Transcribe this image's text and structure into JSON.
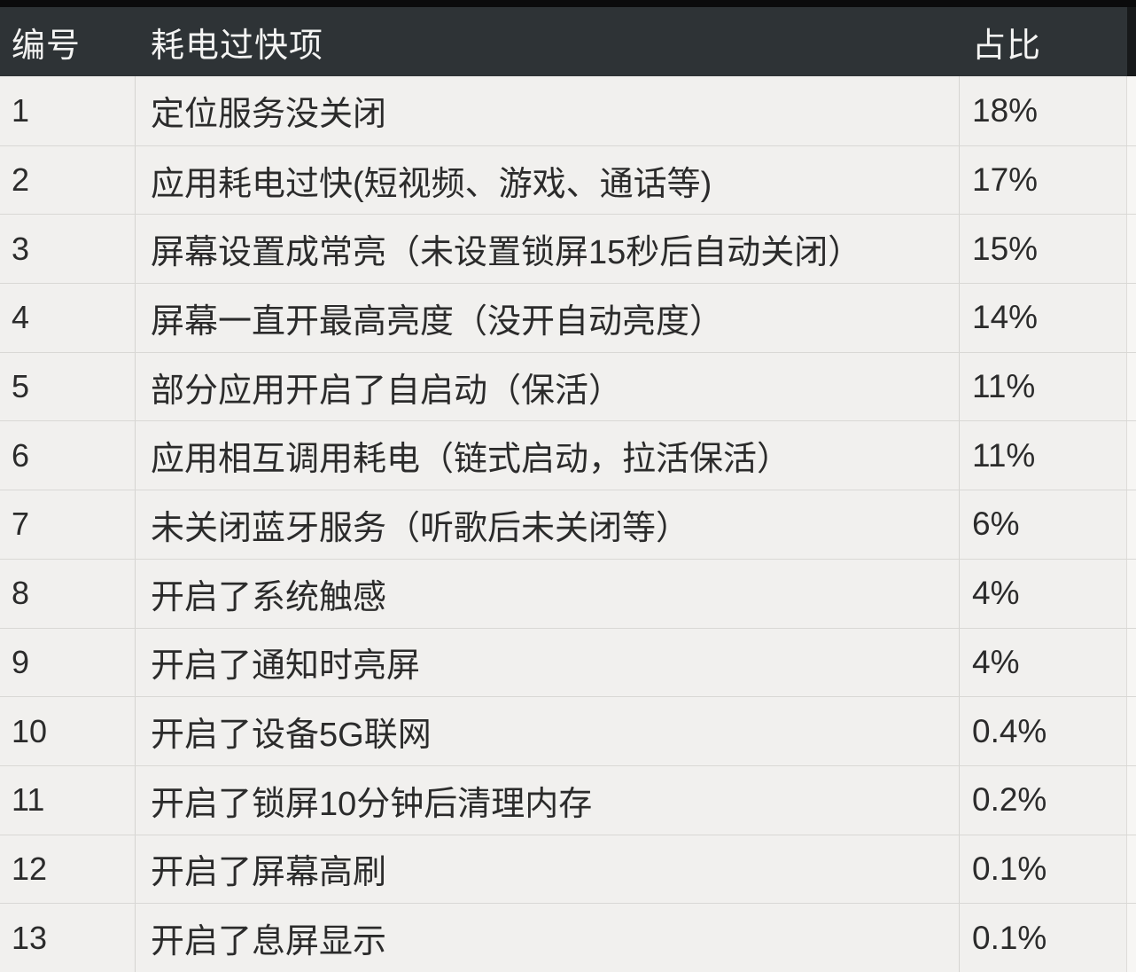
{
  "table": {
    "columns": [
      {
        "key": "id",
        "label": "编号"
      },
      {
        "key": "item",
        "label": "耗电过快项"
      },
      {
        "key": "pct",
        "label": "占比"
      }
    ],
    "rows": [
      {
        "id": "1",
        "item": "定位服务没关闭",
        "pct": "18%"
      },
      {
        "id": "2",
        "item": "应用耗电过快(短视频、游戏、通话等)",
        "pct": "17%"
      },
      {
        "id": "3",
        "item": "屏幕设置成常亮（未设置锁屏15秒后自动关闭）",
        "pct": "15%"
      },
      {
        "id": "4",
        "item": "屏幕一直开最高亮度（没开自动亮度）",
        "pct": "14%"
      },
      {
        "id": "5",
        "item": "部分应用开启了自启动（保活）",
        "pct": "11%"
      },
      {
        "id": "6",
        "item": "应用相互调用耗电（链式启动，拉活保活）",
        "pct": "11%"
      },
      {
        "id": "7",
        "item": "未关闭蓝牙服务（听歌后未关闭等）",
        "pct": "6%"
      },
      {
        "id": "8",
        "item": "开启了系统触感",
        "pct": "4%"
      },
      {
        "id": "9",
        "item": "开启了通知时亮屏",
        "pct": "4%"
      },
      {
        "id": "10",
        "item": "开启了设备5G联网",
        "pct": "0.4%"
      },
      {
        "id": "11",
        "item": "开启了锁屏10分钟后清理内存",
        "pct": "0.2%"
      },
      {
        "id": "12",
        "item": "开启了屏幕高刷",
        "pct": "0.1%"
      },
      {
        "id": "13",
        "item": "开启了息屏显示",
        "pct": "0.1%"
      }
    ]
  },
  "chart_data": {
    "type": "table",
    "columns": [
      "编号",
      "耗电过快项",
      "占比"
    ],
    "categories": [
      "定位服务没关闭",
      "应用耗电过快(短视频、游戏、通话等)",
      "屏幕设置成常亮（未设置锁屏15秒后自动关闭）",
      "屏幕一直开最高亮度（没开自动亮度）",
      "部分应用开启了自启动（保活）",
      "应用相互调用耗电（链式启动，拉活保活）",
      "未关闭蓝牙服务（听歌后未关闭等）",
      "开启了系统触感",
      "开启了通知时亮屏",
      "开启了设备5G联网",
      "开启了锁屏10分钟后清理内存",
      "开启了屏幕高刷",
      "开启了息屏显示"
    ],
    "values_percent": [
      18,
      17,
      15,
      14,
      11,
      11,
      6,
      4,
      4,
      0.4,
      0.2,
      0.1,
      0.1
    ]
  },
  "colors": {
    "header_bg": "#2e3336",
    "header_text": "#f4f4f3",
    "top_strip": "#0b0b0c",
    "body_bg": "#f1f0ee",
    "body_text": "#2b2b2b",
    "grid_line": "#d9d8d5"
  }
}
